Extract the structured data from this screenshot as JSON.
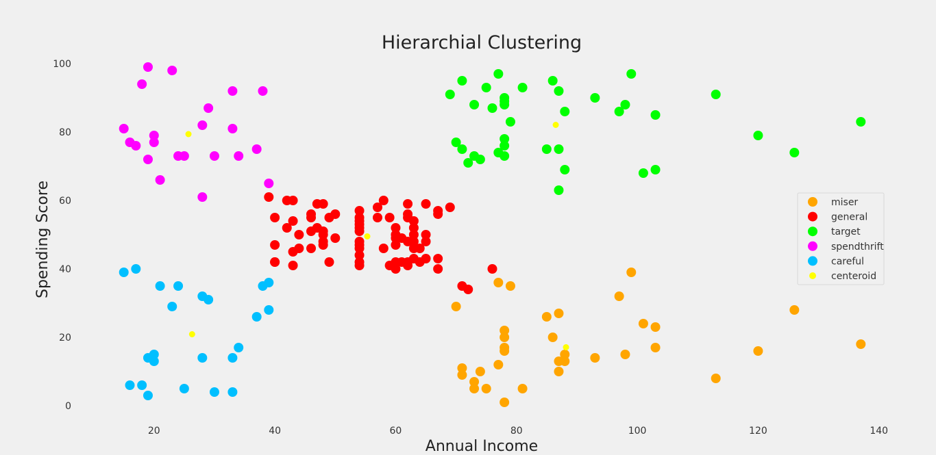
{
  "chart_data": {
    "type": "scatter",
    "title": "Hierarchial Clustering",
    "xlabel": "Annual Income",
    "ylabel": "Spending Score",
    "xlim": [
      8,
      144
    ],
    "ylim": [
      -3,
      102
    ],
    "x_ticks": [
      20,
      40,
      60,
      80,
      100,
      120,
      140
    ],
    "y_ticks": [
      0,
      20,
      40,
      60,
      80,
      100
    ],
    "grid": false,
    "legend_position": "right",
    "series": [
      {
        "name": "miser",
        "color": "#ffa500",
        "points": [
          [
            70,
            29
          ],
          [
            71,
            11
          ],
          [
            71,
            9
          ],
          [
            73,
            7
          ],
          [
            73,
            5
          ],
          [
            74,
            10
          ],
          [
            75,
            5
          ],
          [
            77,
            12
          ],
          [
            77,
            36
          ],
          [
            78,
            22
          ],
          [
            78,
            20
          ],
          [
            78,
            17
          ],
          [
            78,
            16
          ],
          [
            78,
            1
          ],
          [
            79,
            35
          ],
          [
            81,
            5
          ],
          [
            85,
            26
          ],
          [
            86,
            20
          ],
          [
            87,
            27
          ],
          [
            87,
            13
          ],
          [
            87,
            10
          ],
          [
            88,
            15
          ],
          [
            88,
            13
          ],
          [
            93,
            14
          ],
          [
            97,
            32
          ],
          [
            98,
            15
          ],
          [
            99,
            39
          ],
          [
            101,
            24
          ],
          [
            103,
            23
          ],
          [
            103,
            17
          ],
          [
            113,
            8
          ],
          [
            120,
            16
          ],
          [
            126,
            28
          ],
          [
            137,
            18
          ]
        ]
      },
      {
        "name": "general",
        "color": "#ff0000",
        "points": [
          [
            39,
            61
          ],
          [
            40,
            55
          ],
          [
            40,
            47
          ],
          [
            40,
            42
          ],
          [
            40,
            42
          ],
          [
            42,
            52
          ],
          [
            42,
            60
          ],
          [
            43,
            60
          ],
          [
            43,
            54
          ],
          [
            43,
            45
          ],
          [
            43,
            41
          ],
          [
            44,
            50
          ],
          [
            44,
            46
          ],
          [
            46,
            51
          ],
          [
            46,
            46
          ],
          [
            46,
            56
          ],
          [
            46,
            55
          ],
          [
            47,
            52
          ],
          [
            47,
            59
          ],
          [
            48,
            51
          ],
          [
            48,
            59
          ],
          [
            48,
            50
          ],
          [
            48,
            48
          ],
          [
            48,
            47
          ],
          [
            49,
            55
          ],
          [
            49,
            42
          ],
          [
            50,
            49
          ],
          [
            50,
            56
          ],
          [
            54,
            47
          ],
          [
            54,
            54
          ],
          [
            54,
            53
          ],
          [
            54,
            48
          ],
          [
            54,
            52
          ],
          [
            54,
            42
          ],
          [
            54,
            51
          ],
          [
            54,
            55
          ],
          [
            54,
            41
          ],
          [
            54,
            44
          ],
          [
            54,
            57
          ],
          [
            54,
            46
          ],
          [
            57,
            58
          ],
          [
            57,
            55
          ],
          [
            58,
            60
          ],
          [
            58,
            46
          ],
          [
            59,
            55
          ],
          [
            59,
            41
          ],
          [
            60,
            49
          ],
          [
            60,
            40
          ],
          [
            60,
            42
          ],
          [
            60,
            52
          ],
          [
            60,
            47
          ],
          [
            60,
            50
          ],
          [
            61,
            42
          ],
          [
            61,
            49
          ],
          [
            62,
            41
          ],
          [
            62,
            48
          ],
          [
            62,
            59
          ],
          [
            62,
            55
          ],
          [
            62,
            56
          ],
          [
            62,
            42
          ],
          [
            63,
            50
          ],
          [
            63,
            46
          ],
          [
            63,
            43
          ],
          [
            63,
            48
          ],
          [
            63,
            52
          ],
          [
            63,
            54
          ],
          [
            64,
            42
          ],
          [
            64,
            46
          ],
          [
            65,
            48
          ],
          [
            65,
            50
          ],
          [
            65,
            43
          ],
          [
            65,
            59
          ],
          [
            67,
            43
          ],
          [
            67,
            57
          ],
          [
            67,
            56
          ],
          [
            67,
            40
          ],
          [
            69,
            58
          ],
          [
            71,
            35
          ],
          [
            72,
            34
          ],
          [
            76,
            40
          ]
        ]
      },
      {
        "name": "target",
        "color": "#00ff00",
        "points": [
          [
            69,
            91
          ],
          [
            70,
            77
          ],
          [
            71,
            95
          ],
          [
            71,
            75
          ],
          [
            72,
            71
          ],
          [
            73,
            88
          ],
          [
            73,
            73
          ],
          [
            74,
            72
          ],
          [
            75,
            93
          ],
          [
            76,
            87
          ],
          [
            77,
            97
          ],
          [
            77,
            74
          ],
          [
            78,
            90
          ],
          [
            78,
            88
          ],
          [
            78,
            76
          ],
          [
            78,
            89
          ],
          [
            78,
            78
          ],
          [
            78,
            73
          ],
          [
            79,
            83
          ],
          [
            81,
            93
          ],
          [
            85,
            75
          ],
          [
            86,
            95
          ],
          [
            87,
            63
          ],
          [
            87,
            75
          ],
          [
            87,
            92
          ],
          [
            88,
            86
          ],
          [
            88,
            69
          ],
          [
            93,
            90
          ],
          [
            97,
            86
          ],
          [
            98,
            88
          ],
          [
            99,
            97
          ],
          [
            101,
            68
          ],
          [
            103,
            85
          ],
          [
            103,
            69
          ],
          [
            113,
            91
          ],
          [
            120,
            79
          ],
          [
            126,
            74
          ],
          [
            137,
            83
          ]
        ]
      },
      {
        "name": "spendthrift",
        "color": "#ff00ff",
        "points": [
          [
            15,
            81
          ],
          [
            16,
            77
          ],
          [
            17,
            76
          ],
          [
            18,
            94
          ],
          [
            19,
            72
          ],
          [
            19,
            99
          ],
          [
            20,
            77
          ],
          [
            20,
            79
          ],
          [
            21,
            66
          ],
          [
            23,
            98
          ],
          [
            24,
            73
          ],
          [
            25,
            73
          ],
          [
            28,
            82
          ],
          [
            28,
            61
          ],
          [
            29,
            87
          ],
          [
            30,
            73
          ],
          [
            33,
            92
          ],
          [
            33,
            81
          ],
          [
            34,
            73
          ],
          [
            37,
            75
          ],
          [
            38,
            92
          ],
          [
            39,
            65
          ]
        ]
      },
      {
        "name": "careful",
        "color": "#00bfff",
        "points": [
          [
            15,
            39
          ],
          [
            16,
            6
          ],
          [
            17,
            40
          ],
          [
            18,
            6
          ],
          [
            19,
            3
          ],
          [
            19,
            14
          ],
          [
            20,
            15
          ],
          [
            20,
            13
          ],
          [
            21,
            35
          ],
          [
            23,
            29
          ],
          [
            24,
            35
          ],
          [
            25,
            5
          ],
          [
            28,
            14
          ],
          [
            28,
            32
          ],
          [
            29,
            31
          ],
          [
            30,
            4
          ],
          [
            33,
            4
          ],
          [
            33,
            14
          ],
          [
            34,
            17
          ],
          [
            37,
            26
          ],
          [
            38,
            35
          ],
          [
            39,
            36
          ],
          [
            39,
            28
          ]
        ]
      },
      {
        "name": "centeroid",
        "color": "#ffff00",
        "points": [
          [
            25.7,
            79.4
          ],
          [
            55.3,
            49.5
          ],
          [
            86.5,
            82.1
          ],
          [
            26.3,
            20.9
          ],
          [
            88.2,
            17.1
          ]
        ]
      }
    ]
  }
}
